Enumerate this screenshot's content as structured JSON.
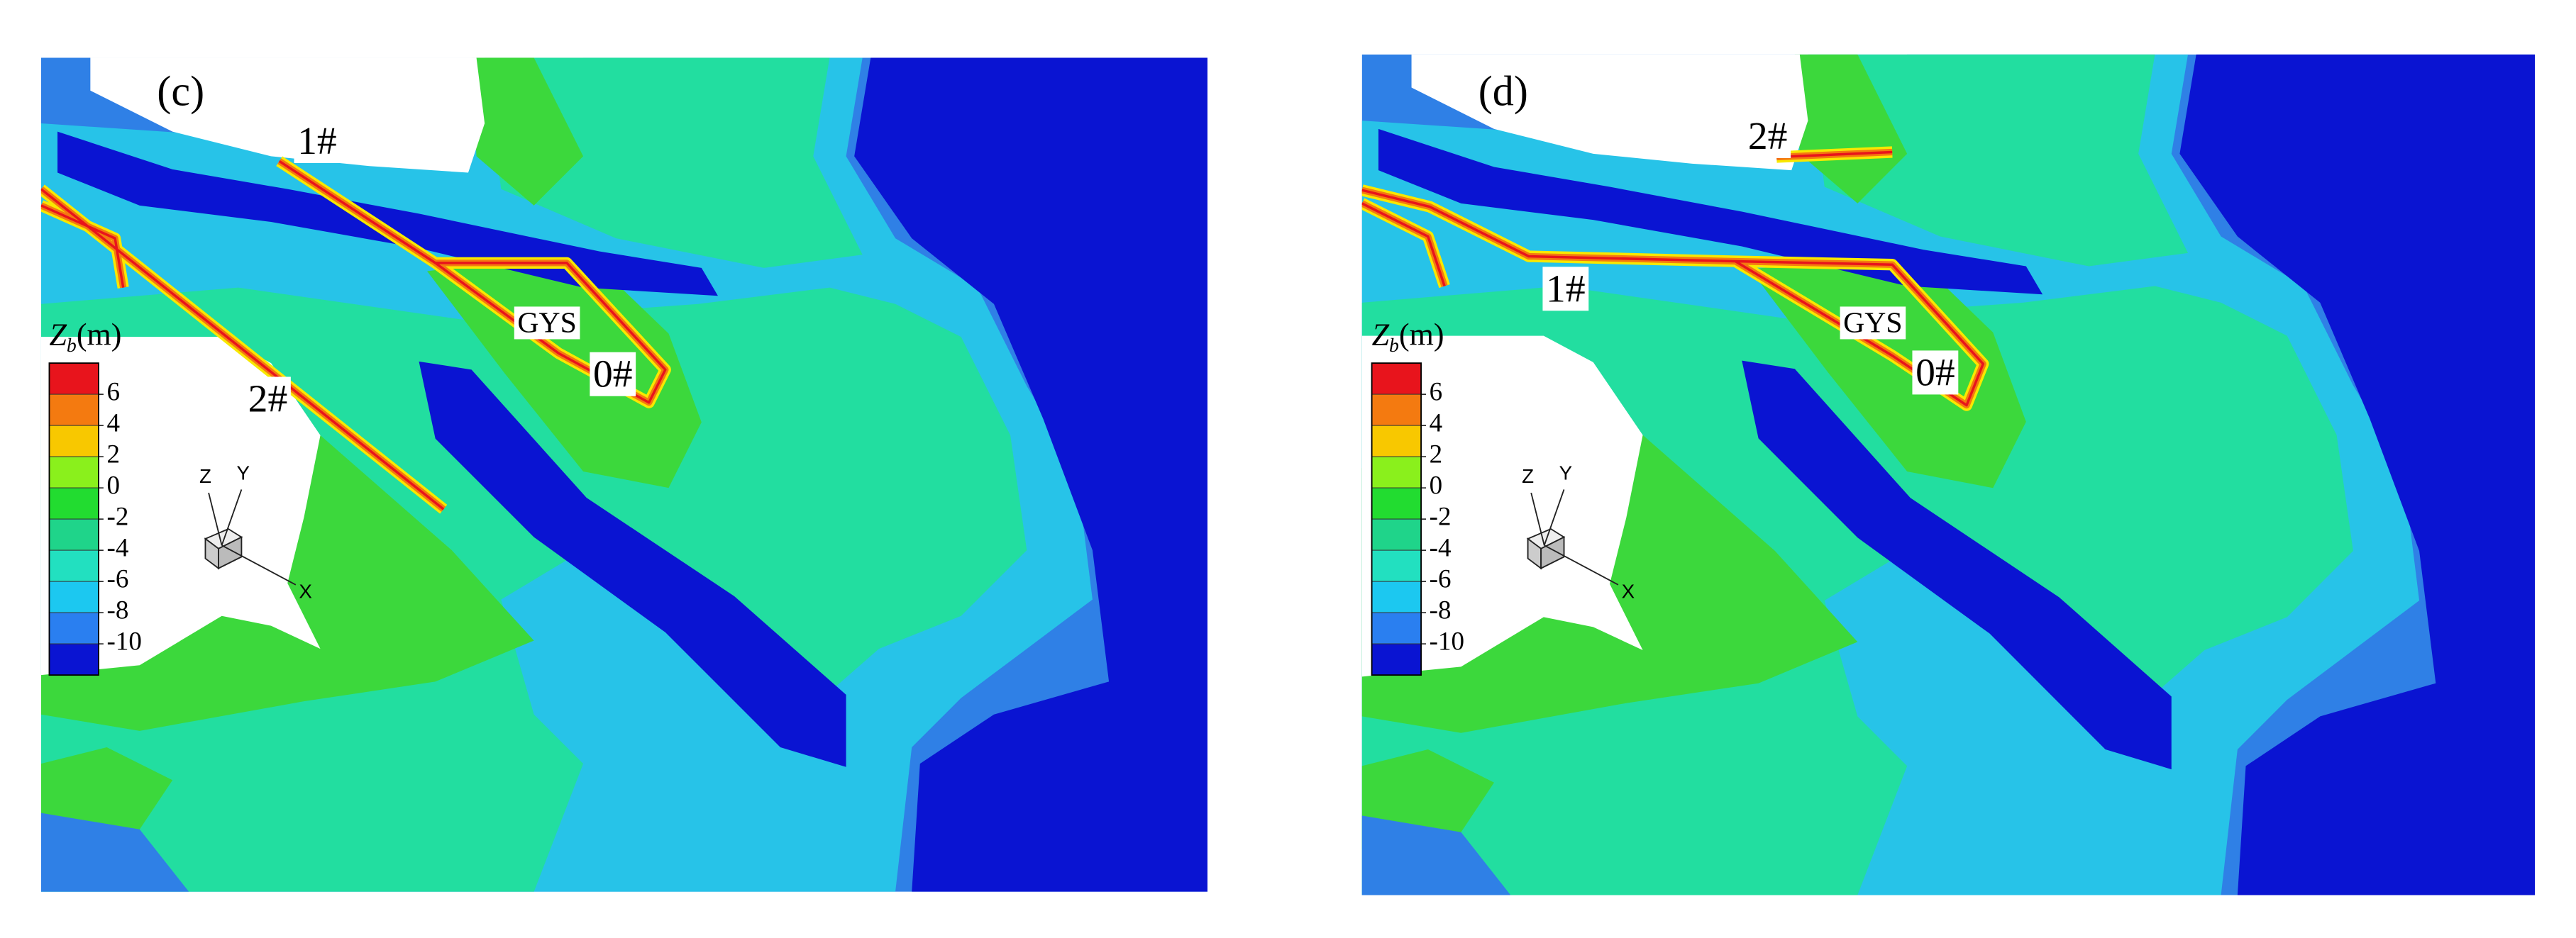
{
  "panels": [
    {
      "label": "(c)",
      "annotations": {
        "jetty_1": "1#",
        "jetty_2": "2#",
        "jetty_0": "0#",
        "island": "GYS"
      }
    },
    {
      "label": "(d)",
      "annotations": {
        "jetty_2": "2#",
        "jetty_1": "1#",
        "jetty_0": "0#",
        "island": "GYS"
      }
    }
  ],
  "legend": {
    "symbol": "Z",
    "subscript": "b",
    "unit": "(m)",
    "levels": [
      6,
      4,
      2,
      0,
      -2,
      -4,
      -6,
      -8,
      -10
    ],
    "colors": [
      "#e8141c",
      "#f47a10",
      "#f8c800",
      "#8af01c",
      "#22dc30",
      "#1fd48a",
      "#22e0c0",
      "#1cc8f0",
      "#2a7ff0",
      "#0a14d2"
    ]
  },
  "triad": {
    "z": "Z",
    "y": "Y",
    "x": "X"
  }
}
